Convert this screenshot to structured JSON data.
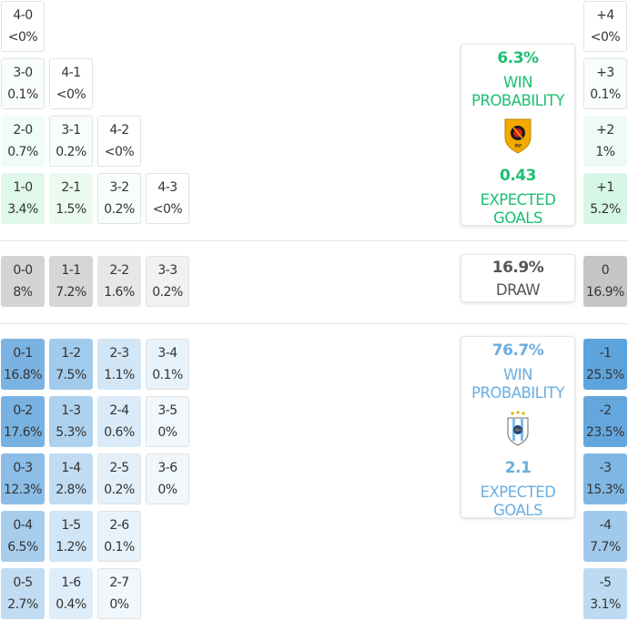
{
  "colors": {
    "home": "#1cbf72",
    "away": "#6aaee0",
    "draw_text": "#555555"
  },
  "home_scores": [
    {
      "score": "4-0",
      "prob": "<0%",
      "pct": 0
    },
    {
      "score": "3-0",
      "prob": "0.1%",
      "pct": 0.1
    },
    {
      "score": "4-1",
      "prob": "<0%",
      "pct": 0
    },
    {
      "score": "2-0",
      "prob": "0.7%",
      "pct": 0.7
    },
    {
      "score": "3-1",
      "prob": "0.2%",
      "pct": 0.2
    },
    {
      "score": "4-2",
      "prob": "<0%",
      "pct": 0
    },
    {
      "score": "1-0",
      "prob": "3.4%",
      "pct": 3.4
    },
    {
      "score": "2-1",
      "prob": "1.5%",
      "pct": 1.5
    },
    {
      "score": "3-2",
      "prob": "0.2%",
      "pct": 0.2
    },
    {
      "score": "4-3",
      "prob": "<0%",
      "pct": 0
    }
  ],
  "draw_scores": [
    {
      "score": "0-0",
      "prob": "8%",
      "pct": 8
    },
    {
      "score": "1-1",
      "prob": "7.2%",
      "pct": 7.2
    },
    {
      "score": "2-2",
      "prob": "1.6%",
      "pct": 1.6
    },
    {
      "score": "3-3",
      "prob": "0.2%",
      "pct": 0.2
    }
  ],
  "away_scores": [
    {
      "score": "0-1",
      "prob": "16.8%",
      "pct": 16.8
    },
    {
      "score": "1-2",
      "prob": "7.5%",
      "pct": 7.5
    },
    {
      "score": "2-3",
      "prob": "1.1%",
      "pct": 1.1
    },
    {
      "score": "3-4",
      "prob": "0.1%",
      "pct": 0.1
    },
    {
      "score": "0-2",
      "prob": "17.6%",
      "pct": 17.6
    },
    {
      "score": "1-3",
      "prob": "5.3%",
      "pct": 5.3
    },
    {
      "score": "2-4",
      "prob": "0.6%",
      "pct": 0.6
    },
    {
      "score": "3-5",
      "prob": "0%",
      "pct": 0
    },
    {
      "score": "0-3",
      "prob": "12.3%",
      "pct": 12.3
    },
    {
      "score": "1-4",
      "prob": "2.8%",
      "pct": 2.8
    },
    {
      "score": "2-5",
      "prob": "0.2%",
      "pct": 0.2
    },
    {
      "score": "3-6",
      "prob": "0%",
      "pct": 0
    },
    {
      "score": "0-4",
      "prob": "6.5%",
      "pct": 6.5
    },
    {
      "score": "1-5",
      "prob": "1.2%",
      "pct": 1.2
    },
    {
      "score": "2-6",
      "prob": "0.1%",
      "pct": 0.1
    },
    {
      "score": "0-5",
      "prob": "2.7%",
      "pct": 2.7
    },
    {
      "score": "1-6",
      "prob": "0.4%",
      "pct": 0.4
    },
    {
      "score": "2-7",
      "prob": "0%",
      "pct": 0
    }
  ],
  "margins": [
    {
      "margin": "+4",
      "prob": "<0%",
      "pct": 0,
      "side": "home"
    },
    {
      "margin": "+3",
      "prob": "0.1%",
      "pct": 0.1,
      "side": "home"
    },
    {
      "margin": "+2",
      "prob": "1%",
      "pct": 1,
      "side": "home"
    },
    {
      "margin": "+1",
      "prob": "5.2%",
      "pct": 5.2,
      "side": "home"
    },
    {
      "margin": "0",
      "prob": "16.9%",
      "pct": 16.9,
      "side": "draw"
    },
    {
      "margin": "-1",
      "prob": "25.5%",
      "pct": 25.5,
      "side": "away"
    },
    {
      "margin": "-2",
      "prob": "23.5%",
      "pct": 23.5,
      "side": "away"
    },
    {
      "margin": "-3",
      "prob": "15.3%",
      "pct": 15.3,
      "side": "away"
    },
    {
      "margin": "-4",
      "prob": "7.7%",
      "pct": 7.7,
      "side": "away"
    },
    {
      "margin": "-5",
      "prob": "3.1%",
      "pct": 3.1,
      "side": "away"
    }
  ],
  "home_card": {
    "win_pct": "6.3%",
    "win_label_1": "WIN",
    "win_label_2": "PROBABILITY",
    "crest_icon": "angola-crest-icon",
    "xg": "0.43",
    "xg_label_1": "EXPECTED",
    "xg_label_2": "GOALS"
  },
  "draw_card": {
    "pct": "16.9%",
    "label": "DRAW"
  },
  "away_card": {
    "win_pct": "76.7%",
    "win_label_1": "WIN",
    "win_label_2": "PROBABILITY",
    "crest_icon": "argentina-crest-icon",
    "xg": "2.1",
    "xg_label_1": "EXPECTED",
    "xg_label_2": "GOALS"
  }
}
